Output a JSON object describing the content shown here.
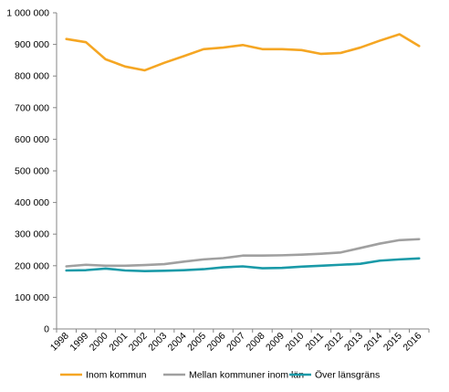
{
  "chart_data": {
    "type": "line",
    "x": [
      "1998",
      "1999",
      "2000",
      "2001",
      "2002",
      "2003",
      "2004",
      "2005",
      "2006",
      "2007",
      "2008",
      "2009",
      "2010",
      "2011",
      "2012",
      "2013",
      "2014",
      "2015",
      "2016"
    ],
    "ylim": [
      0,
      1000000
    ],
    "yticks": [
      0,
      100000,
      200000,
      300000,
      400000,
      500000,
      600000,
      700000,
      800000,
      900000,
      1000000
    ],
    "ytick_labels": [
      "0",
      "100 000",
      "200 000",
      "300 000",
      "400 000",
      "500 000",
      "600 000",
      "700 000",
      "800 000",
      "900 000",
      "1 000 000"
    ],
    "grid": false,
    "legend_position": "bottom",
    "series": [
      {
        "name": "Inom kommun",
        "color": "#F5A623",
        "values": [
          917000,
          907000,
          853000,
          830000,
          818000,
          842000,
          863000,
          885000,
          890000,
          898000,
          885000,
          885000,
          882000,
          870000,
          873000,
          890000,
          912000,
          932000,
          895000
        ]
      },
      {
        "name": "Mellan kommuner inom län",
        "color": "#A0A0A0",
        "values": [
          198000,
          203000,
          200000,
          200000,
          202000,
          205000,
          213000,
          220000,
          224000,
          232000,
          232000,
          233000,
          235000,
          238000,
          242000,
          256000,
          270000,
          281000,
          284000
        ]
      },
      {
        "name": "Över länsgräns",
        "color": "#1A9AA8",
        "values": [
          185000,
          186000,
          191000,
          185000,
          183000,
          184000,
          186000,
          189000,
          195000,
          198000,
          192000,
          193000,
          197000,
          200000,
          203000,
          206000,
          216000,
          220000,
          223000
        ]
      }
    ]
  }
}
